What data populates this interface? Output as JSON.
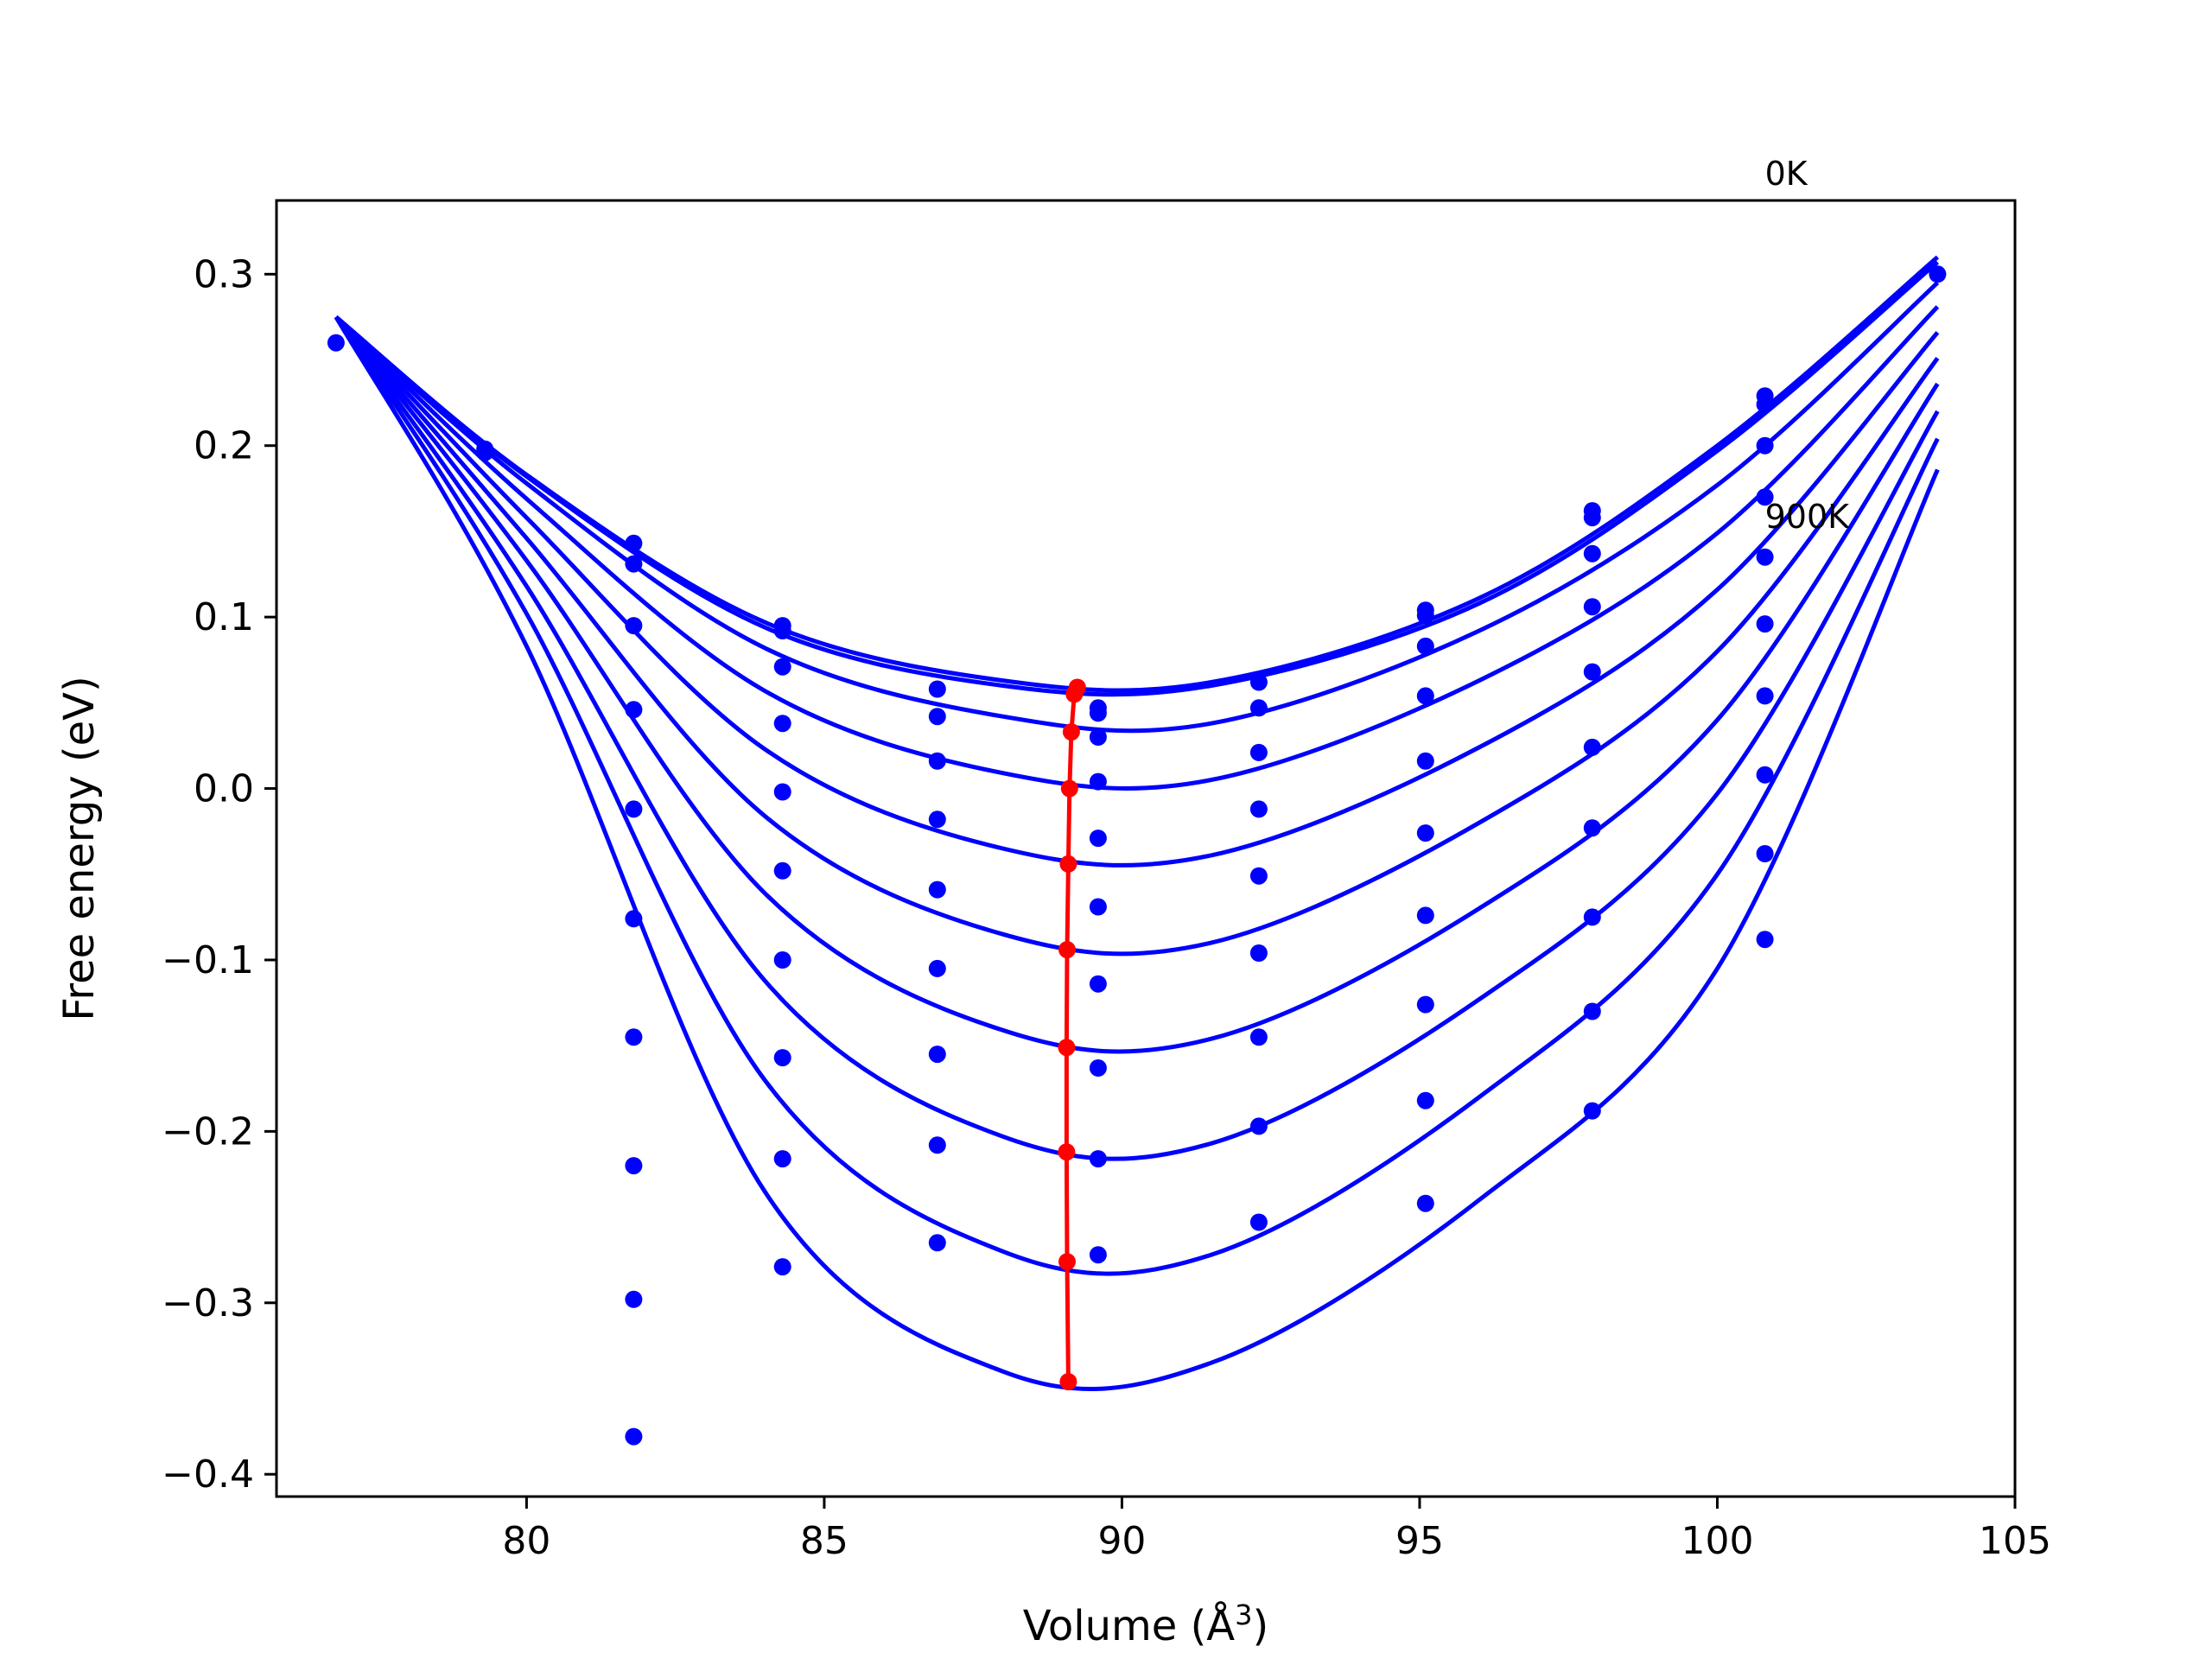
{
  "chart_data": {
    "type": "line",
    "title": "",
    "xlabel": "Volume (Å",
    "xlabel_sup": "3",
    "xlabel_close": ")",
    "ylabel": "Free energy (eV)",
    "xlim": [
      75.8,
      105.0
    ],
    "ylim": [
      -0.413,
      0.343
    ],
    "xticks": [
      80,
      85,
      90,
      95,
      100,
      105
    ],
    "yticks": [
      0.3,
      0.2,
      0.1,
      0.0,
      -0.1,
      -0.2,
      -0.3,
      -0.4
    ],
    "xtick_labels": [
      "80",
      "85",
      "90",
      "95",
      "100",
      "105"
    ],
    "ytick_labels": [
      "0.3",
      "0.2",
      "0.1",
      "0.0",
      "−0.1",
      "−0.2",
      "−0.3",
      "−0.4"
    ],
    "grid": false,
    "annotations": [
      {
        "text": "0K",
        "x": 100.8,
        "y": 0.352
      },
      {
        "text": "900K",
        "x": 100.8,
        "y": 0.152
      }
    ],
    "colors": {
      "curves": "#0000ff",
      "minimum_path": "#ff0000"
    },
    "x_sample_points": [
      76.8,
      79.3,
      81.8,
      84.3,
      86.9,
      89.6,
      92.3,
      95.1,
      97.9,
      100.8,
      103.7
    ],
    "series": [
      {
        "curve_x": [
          76.8,
          80,
          84,
          88,
          91.5,
          96,
          100,
          103.7
        ],
        "curve_y": [
          0.275,
          0.183,
          0.097,
          0.063,
          0.062,
          0.111,
          0.2,
          0.31
        ],
        "points": [
          [
            76.8,
            0.26
          ],
          [
            79.3,
            0.198
          ],
          [
            81.8,
            0.143
          ],
          [
            84.3,
            0.095
          ],
          [
            86.9,
            0.058
          ],
          [
            89.6,
            0.044
          ],
          [
            92.3,
            0.062
          ],
          [
            95.1,
            0.104
          ],
          [
            97.9,
            0.162
          ],
          [
            100.8,
            0.229
          ],
          [
            103.7,
            0.3
          ]
        ]
      },
      {
        "curve_x": [
          76.8,
          80,
          84,
          88,
          91.5,
          96,
          100,
          103.7
        ],
        "curve_y": [
          0.275,
          0.182,
          0.094,
          0.06,
          0.06,
          0.108,
          0.197,
          0.307
        ],
        "points": [
          [
            79.3,
            0.196
          ],
          [
            81.8,
            0.131
          ],
          [
            84.3,
            0.092
          ],
          [
            89.6,
            0.047
          ],
          [
            95.1,
            0.101
          ],
          [
            97.9,
            0.158
          ],
          [
            100.8,
            0.224
          ]
        ]
      },
      {
        "curve_x": [
          76.8,
          80,
          84,
          88,
          91.5,
          96,
          100,
          103.7
        ],
        "curve_y": [
          0.275,
          0.178,
          0.082,
          0.042,
          0.038,
          0.092,
          0.177,
          0.295
        ],
        "points": [
          [
            84.3,
            0.071
          ],
          [
            86.9,
            0.042
          ],
          [
            89.6,
            0.03
          ],
          [
            92.3,
            0.047
          ],
          [
            95.1,
            0.083
          ],
          [
            97.9,
            0.137
          ],
          [
            100.8,
            0.2
          ]
        ]
      },
      {
        "curve_x": [
          76.8,
          80,
          84,
          88,
          91.5,
          96,
          100,
          103.7
        ],
        "curve_y": [
          0.275,
          0.169,
          0.057,
          0.009,
          0.005,
          0.063,
          0.149,
          0.281
        ],
        "points": [
          [
            81.8,
            0.095
          ],
          [
            84.3,
            0.038
          ],
          [
            86.9,
            0.016
          ],
          [
            89.6,
            0.004
          ],
          [
            92.3,
            0.021
          ],
          [
            95.1,
            0.054
          ],
          [
            97.9,
            0.106
          ],
          [
            100.8,
            0.17
          ]
        ]
      },
      {
        "curve_x": [
          76.8,
          80,
          84,
          88,
          91.5,
          96,
          100,
          103.7
        ],
        "curve_y": [
          0.275,
          0.158,
          0.023,
          -0.035,
          -0.039,
          0.024,
          0.116,
          0.266
        ],
        "points": [
          [
            81.8,
            0.046
          ],
          [
            84.3,
            -0.002
          ],
          [
            86.9,
            -0.018
          ],
          [
            89.6,
            -0.029
          ],
          [
            92.3,
            -0.012
          ],
          [
            95.1,
            0.016
          ],
          [
            97.9,
            0.068
          ],
          [
            100.8,
            0.135
          ]
        ]
      },
      {
        "curve_x": [
          76.8,
          80,
          84,
          88,
          91.5,
          96,
          100,
          103.7
        ],
        "curve_y": [
          0.275,
          0.146,
          -0.016,
          -0.085,
          -0.09,
          -0.02,
          0.08,
          0.251
        ],
        "points": [
          [
            81.8,
            -0.012
          ],
          [
            84.3,
            -0.048
          ],
          [
            86.9,
            -0.059
          ],
          [
            89.6,
            -0.069
          ],
          [
            92.3,
            -0.051
          ],
          [
            95.1,
            -0.026
          ],
          [
            97.9,
            0.024
          ],
          [
            100.8,
            0.096
          ]
        ]
      },
      {
        "curve_x": [
          76.8,
          80,
          84,
          88,
          91.5,
          96,
          100,
          103.7
        ],
        "curve_y": [
          0.275,
          0.133,
          -0.061,
          -0.141,
          -0.146,
          -0.07,
          0.04,
          0.236
        ],
        "points": [
          [
            81.8,
            -0.076
          ],
          [
            84.3,
            -0.1
          ],
          [
            86.9,
            -0.105
          ],
          [
            89.6,
            -0.114
          ],
          [
            92.3,
            -0.096
          ],
          [
            95.1,
            -0.074
          ],
          [
            97.9,
            -0.023
          ],
          [
            100.8,
            0.054
          ]
        ]
      },
      {
        "curve_x": [
          76.8,
          80,
          84,
          88,
          91.5,
          96,
          100,
          103.7
        ],
        "curve_y": [
          0.275,
          0.118,
          -0.112,
          -0.203,
          -0.207,
          -0.123,
          -0.003,
          0.22
        ],
        "points": [
          [
            81.8,
            -0.145
          ],
          [
            84.3,
            -0.157
          ],
          [
            86.9,
            -0.155
          ],
          [
            89.6,
            -0.163
          ],
          [
            92.3,
            -0.145
          ],
          [
            95.1,
            -0.126
          ],
          [
            97.9,
            -0.075
          ],
          [
            100.8,
            0.008
          ]
        ]
      },
      {
        "curve_x": [
          76.8,
          80,
          84,
          88,
          91.5,
          96,
          100,
          103.7
        ],
        "curve_y": [
          0.275,
          0.102,
          -0.17,
          -0.27,
          -0.272,
          -0.18,
          -0.05,
          0.204
        ],
        "points": [
          [
            81.8,
            -0.22
          ],
          [
            84.3,
            -0.216
          ],
          [
            86.9,
            -0.208
          ],
          [
            89.6,
            -0.216
          ],
          [
            92.3,
            -0.197
          ],
          [
            95.1,
            -0.182
          ],
          [
            97.9,
            -0.13
          ],
          [
            100.8,
            -0.038
          ]
        ]
      },
      {
        "curve_x": [
          76.8,
          80,
          84,
          88,
          91.5,
          96,
          100,
          103.7
        ],
        "curve_y": [
          0.275,
          0.083,
          -0.235,
          -0.34,
          -0.335,
          -0.24,
          -0.105,
          0.186
        ],
        "points": [
          [
            81.8,
            -0.298
          ],
          [
            81.8,
            -0.378
          ],
          [
            84.3,
            -0.279
          ],
          [
            86.9,
            -0.265
          ],
          [
            89.6,
            -0.272
          ],
          [
            92.3,
            -0.253
          ],
          [
            95.1,
            -0.242
          ],
          [
            97.9,
            -0.188
          ],
          [
            100.8,
            -0.088
          ]
        ]
      }
    ],
    "minimum_path": {
      "name": "",
      "x": [
        89.25,
        89.2,
        89.15,
        89.12,
        89.1,
        89.08,
        89.07,
        89.07,
        89.08,
        89.1
      ],
      "y": [
        0.059,
        0.055,
        0.033,
        0.0,
        -0.044,
        -0.094,
        -0.151,
        -0.212,
        -0.276,
        -0.346
      ]
    }
  }
}
